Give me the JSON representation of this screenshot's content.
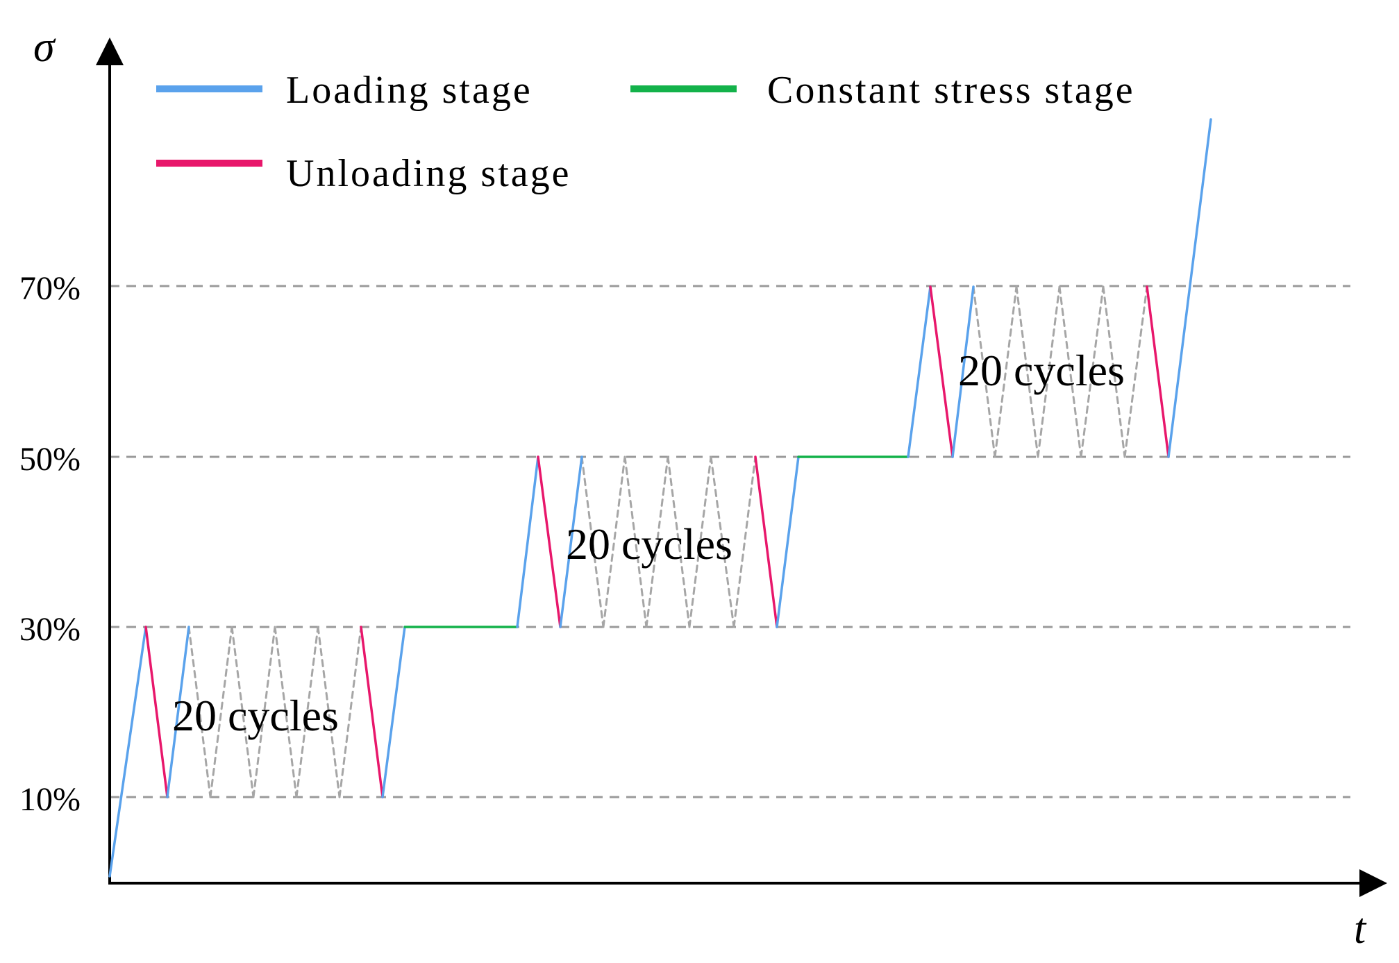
{
  "axes": {
    "y_symbol": "σ",
    "x_symbol": "t",
    "y_ticks": [
      "10%",
      "30%",
      "50%",
      "70%"
    ]
  },
  "legend": {
    "loading": "Loading stage",
    "unloading": "Unloading stage",
    "constant": "Constant stress stage"
  },
  "annotations": {
    "block1": "20 cycles",
    "block2": "20 cycles",
    "block3": "20 cycles"
  },
  "colors": {
    "loading": "#5aa2ec",
    "unloading": "#e8176b",
    "constant": "#13b24a",
    "cycles": "#a6a6a6",
    "gridlines": "#9a9a9a",
    "axis": "#000000"
  },
  "profile": {
    "y_scale_percent": [
      10,
      30,
      50,
      70
    ],
    "blocks": [
      {
        "lower": 10,
        "upper": 30,
        "cycles_label": "20 cycles"
      },
      {
        "lower": 30,
        "upper": 50,
        "cycles_label": "20 cycles"
      },
      {
        "lower": 50,
        "upper": 70,
        "cycles_label": "20 cycles"
      }
    ],
    "hold_levels": [
      30,
      50
    ]
  }
}
